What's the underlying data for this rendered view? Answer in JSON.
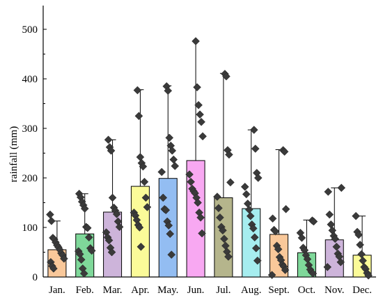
{
  "chart_data": {
    "type": "bar",
    "title": "",
    "xlabel": "",
    "ylabel": "rainfall (mm)",
    "ylim": [
      0,
      550
    ],
    "yticks": [
      0,
      100,
      200,
      300,
      400,
      500
    ],
    "grid": false,
    "legend": "none",
    "categories": [
      "Jan.",
      "Feb.",
      "Mar.",
      "Apr.",
      "May.",
      "Jun.",
      "Jul.",
      "Aug.",
      "Sept.",
      "Oct.",
      "Nov.",
      "Dec."
    ],
    "colors": [
      "#F9C89A",
      "#7FD89A",
      "#CDB4DA",
      "#FBFB99",
      "#93BDF2",
      "#F8A8F2",
      "#B5B58C",
      "#A6EDEF",
      "#F9C89A",
      "#7FD89A",
      "#CDB4DA",
      "#FBFB99"
    ],
    "values": [
      55,
      87,
      131,
      183,
      199,
      235,
      160,
      138,
      86,
      49,
      75,
      44
    ],
    "error_upper": [
      113,
      168,
      277,
      378,
      386,
      476,
      411,
      297,
      257,
      115,
      180,
      123
    ],
    "points": [
      [
        126,
        113,
        79,
        76,
        70,
        64,
        60,
        55,
        48,
        44,
        37,
        30,
        22,
        17
      ],
      [
        168,
        161,
        152,
        145,
        138,
        101,
        99,
        80,
        58,
        53,
        52,
        46,
        35,
        17,
        7
      ],
      [
        277,
        262,
        255,
        160,
        140,
        134,
        127,
        112,
        101,
        90,
        80,
        74,
        59,
        50
      ],
      [
        377,
        325,
        242,
        230,
        223,
        192,
        160,
        141,
        130,
        124,
        115,
        105,
        100,
        61
      ],
      [
        385,
        376,
        281,
        265,
        255,
        237,
        224,
        212,
        160,
        137,
        135,
        112,
        104,
        87,
        45
      ],
      [
        476,
        383,
        347,
        328,
        313,
        284,
        207,
        192,
        178,
        173,
        169,
        160,
        150,
        130,
        120,
        88
      ],
      [
        410,
        405,
        256,
        247,
        191,
        162,
        139,
        120,
        101,
        94,
        77,
        63,
        51,
        41
      ],
      [
        297,
        259,
        210,
        200,
        182,
        167,
        148,
        136,
        123,
        106,
        98,
        80,
        58,
        33
      ],
      [
        256,
        253,
        137,
        118,
        95,
        92,
        63,
        56,
        40,
        34,
        25,
        21,
        14,
        4
      ],
      [
        114,
        112,
        89,
        79,
        59,
        54,
        44,
        36,
        24,
        15,
        10,
        7
      ],
      [
        180,
        172,
        126,
        106,
        94,
        83,
        77,
        61,
        47,
        41,
        30,
        20
      ],
      [
        123,
        91,
        85,
        65,
        46,
        33,
        20,
        16,
        8,
        3
      ]
    ]
  }
}
